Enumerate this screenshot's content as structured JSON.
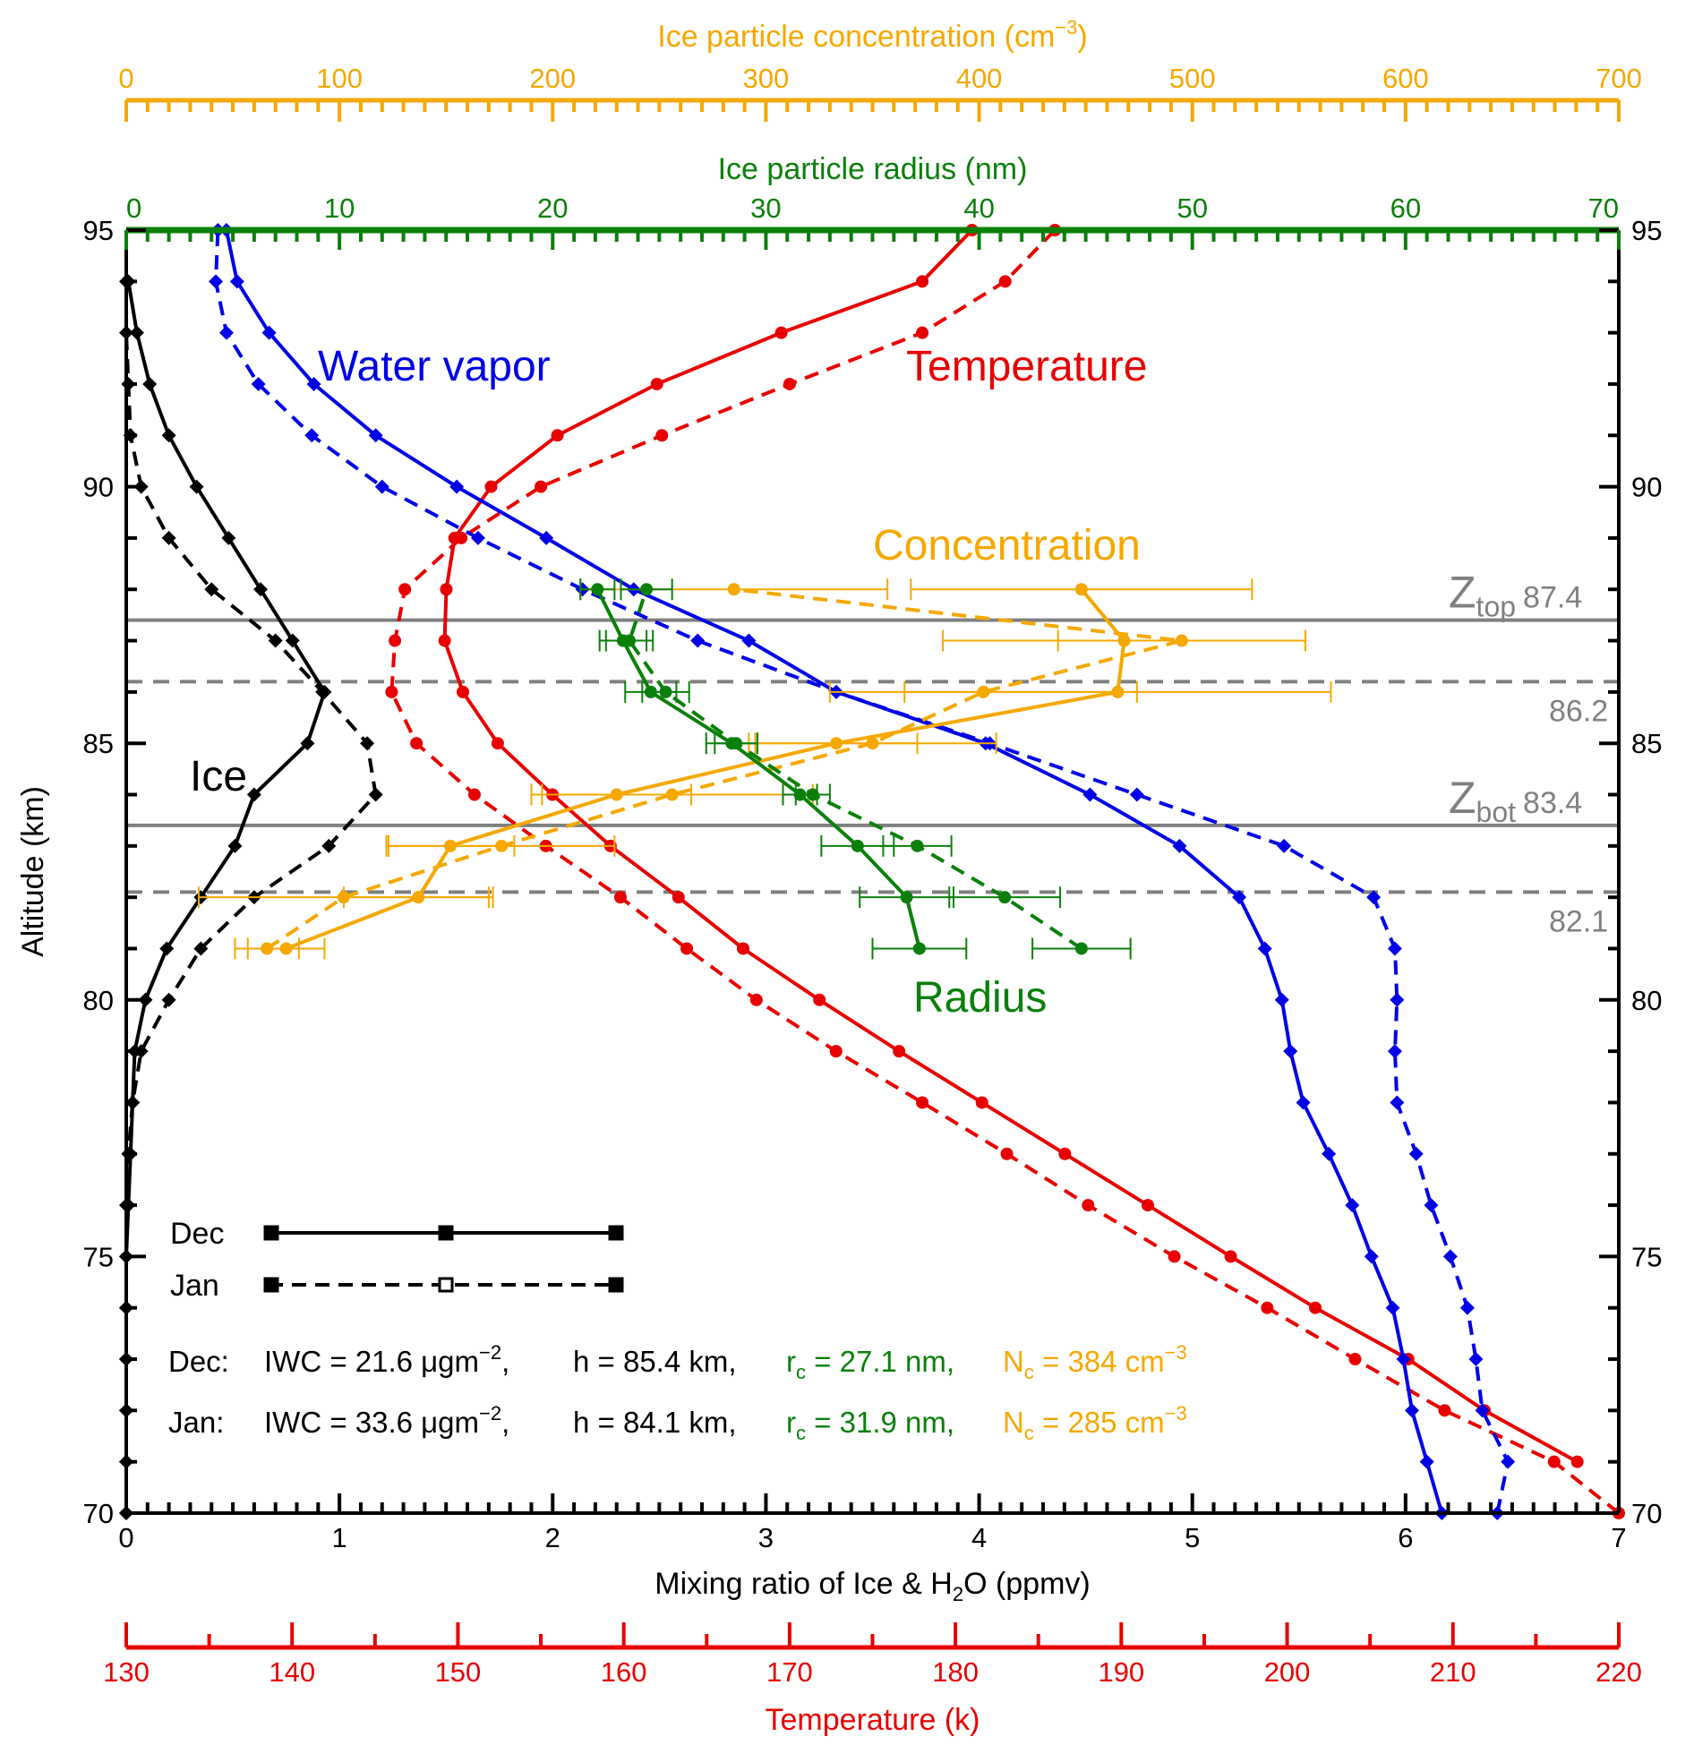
{
  "chart_data": {
    "type": "line",
    "colors": {
      "ice": "#000000",
      "water_vapor": "#0000e6",
      "temperature": "#e80000",
      "concentration": "#f5a800",
      "radius": "#0a800a",
      "zline": "#808080"
    },
    "axes": {
      "left": {
        "title": "Altitude (km)",
        "range": [
          70,
          95
        ],
        "ticks": [
          "70",
          "75",
          "80",
          "85",
          "90",
          "95"
        ],
        "tick_values": [
          70,
          75,
          80,
          85,
          90,
          95
        ]
      },
      "right": {
        "range": [
          70,
          95
        ],
        "ticks": [
          "70",
          "75",
          "80",
          "85",
          "90",
          "95"
        ],
        "tick_values": [
          70,
          75,
          80,
          85,
          90,
          95
        ]
      },
      "bottom": {
        "title_parts": [
          "Mixing ratio of Ice & H",
          "2",
          "O (ppmv)"
        ],
        "range": [
          0,
          7
        ],
        "ticks": [
          "0",
          "1",
          "2",
          "3",
          "4",
          "5",
          "6",
          "7"
        ],
        "tick_values": [
          0,
          1,
          2,
          3,
          4,
          5,
          6,
          7
        ]
      },
      "temperature": {
        "title": "Temperature (k)",
        "range": [
          130,
          220
        ],
        "ticks": [
          "130",
          "140",
          "150",
          "160",
          "170",
          "180",
          "190",
          "200",
          "210",
          "220"
        ],
        "tick_values": [
          130,
          140,
          150,
          160,
          170,
          180,
          190,
          200,
          210,
          220
        ]
      },
      "radius": {
        "title": "Ice particle radius (nm)",
        "range": [
          0,
          70
        ],
        "ticks": [
          "0",
          "10",
          "20",
          "30",
          "40",
          "50",
          "60",
          "70"
        ],
        "tick_values": [
          0,
          10,
          20,
          30,
          40,
          50,
          60,
          70
        ]
      },
      "concentration": {
        "title_parts": [
          "Ice particle concentration (cm",
          "−3",
          ")"
        ],
        "range": [
          0,
          700
        ],
        "ticks": [
          "0",
          "100",
          "200",
          "300",
          "400",
          "500",
          "600",
          "700"
        ],
        "tick_values": [
          0,
          100,
          200,
          300,
          400,
          500,
          600,
          700
        ]
      }
    },
    "labels": {
      "water_vapor": "Water vapor",
      "temperature": "Temperature",
      "concentration": "Concentration",
      "radius": "Radius",
      "ice": "Ice"
    },
    "reference_lines": [
      {
        "name": "Z",
        "sub": "top",
        "value": "87.4",
        "altitude": 87.4,
        "style": "solid"
      },
      {
        "name": "",
        "sub": "",
        "value": "86.2",
        "altitude": 86.2,
        "style": "dashed"
      },
      {
        "name": "Z",
        "sub": "bot",
        "value": "83.4",
        "altitude": 83.4,
        "style": "solid"
      },
      {
        "name": "",
        "sub": "",
        "value": "82.1",
        "altitude": 82.1,
        "style": "dashed"
      }
    ],
    "legend": [
      {
        "name": "Dec",
        "style": "solid"
      },
      {
        "name": "Jan",
        "style": "dashed"
      }
    ],
    "annotations": [
      {
        "month": "Dec:",
        "iwc": "IWC = 21.6 μgm",
        "iwc_sup": "−2",
        "h": "h = 85.4 km,",
        "r": "r",
        "r_sub": "c",
        "r_val": " = 27.1 nm,",
        "n": "N",
        "n_sub": "c",
        "n_val": " = 384 cm",
        "n_sup": "−3"
      },
      {
        "month": "Jan:",
        "iwc": "IWC = 33.6 μgm",
        "iwc_sup": "−2",
        "h": "h = 84.1 km,",
        "r": "r",
        "r_sub": "c",
        "r_val": " = 31.9 nm,",
        "n": "N",
        "n_sub": "c",
        "n_val": " = 285 cm",
        "n_sup": "−3"
      }
    ],
    "series": {
      "ice_dec": {
        "alt": [
          70,
          71,
          72,
          73,
          74,
          75,
          76,
          77,
          78,
          79,
          80,
          81,
          82,
          83,
          84,
          85,
          86,
          87,
          88,
          89,
          90,
          91,
          92,
          93,
          94
        ],
        "x": [
          0,
          0,
          0,
          0,
          0,
          0,
          0.01,
          0.02,
          0.03,
          0.04,
          0.09,
          0.19,
          0.35,
          0.51,
          0.6,
          0.85,
          0.93,
          0.78,
          0.63,
          0.48,
          0.33,
          0.2,
          0.11,
          0.05,
          0.01
        ]
      },
      "ice_jan": {
        "alt": [
          70,
          71,
          72,
          73,
          74,
          75,
          76,
          77,
          78,
          79,
          80,
          81,
          82,
          83,
          84,
          85,
          86,
          87,
          88,
          89,
          90,
          91,
          92,
          93,
          94
        ],
        "x": [
          0,
          0,
          0,
          0,
          0,
          0,
          0,
          0.01,
          0.03,
          0.07,
          0.2,
          0.35,
          0.6,
          0.95,
          1.17,
          1.13,
          0.92,
          0.7,
          0.4,
          0.2,
          0.07,
          0.02,
          0.01,
          0,
          0
        ]
      },
      "wv_dec": {
        "alt": [
          70,
          71,
          72,
          73,
          74,
          75,
          76,
          77,
          78,
          79,
          80,
          81,
          82,
          83,
          84,
          85,
          86,
          87,
          88,
          89,
          90,
          91,
          92,
          93,
          94,
          95
        ],
        "x": [
          6.17,
          6.1,
          6.03,
          5.99,
          5.94,
          5.84,
          5.75,
          5.64,
          5.52,
          5.46,
          5.42,
          5.34,
          5.22,
          4.94,
          4.52,
          4.03,
          3.33,
          2.92,
          2.38,
          1.97,
          1.55,
          1.17,
          0.88,
          0.67,
          0.52,
          0.47
        ]
      },
      "wv_jan": {
        "alt": [
          70,
          71,
          72,
          73,
          74,
          75,
          76,
          77,
          78,
          79,
          80,
          81,
          82,
          83,
          84,
          85,
          86,
          87,
          88,
          89,
          90,
          91,
          92,
          93,
          94,
          95
        ],
        "x": [
          6.43,
          6.48,
          6.36,
          6.33,
          6.29,
          6.21,
          6.12,
          6.05,
          5.96,
          5.95,
          5.96,
          5.95,
          5.85,
          5.43,
          4.74,
          4.05,
          3.33,
          2.68,
          2.14,
          1.65,
          1.2,
          0.87,
          0.62,
          0.47,
          0.42,
          0.43
        ]
      },
      "t_dec": {
        "alt": [
          71,
          72,
          73,
          74,
          75,
          76,
          77,
          78,
          79,
          80,
          81,
          82,
          83,
          84,
          85,
          86,
          87,
          88,
          89,
          90,
          91,
          92,
          93,
          94,
          95
        ],
        "x": [
          217.5,
          211.9,
          207.3,
          201.7,
          196.6,
          191.6,
          186.6,
          181.6,
          176.6,
          171.8,
          167.2,
          163.3,
          159.2,
          155.7,
          152.4,
          150.3,
          149.2,
          149.3,
          149.8,
          152.0,
          156.0,
          162.0,
          169.5,
          178.0,
          181.0
        ]
      },
      "t_jan": {
        "alt": [
          70,
          71,
          72,
          73,
          74,
          75,
          76,
          77,
          78,
          79,
          80,
          81,
          82,
          83,
          84,
          85,
          86,
          87,
          88,
          89,
          90,
          91,
          92,
          93,
          94,
          95
        ],
        "x": [
          220.0,
          216.1,
          209.5,
          204.1,
          198.8,
          193.2,
          188.0,
          183.1,
          178.0,
          172.8,
          168.0,
          163.8,
          159.8,
          155.3,
          151.0,
          147.5,
          146.0,
          146.2,
          146.8,
          150.2,
          155.0,
          162.3,
          170.0,
          178.0,
          183.0,
          186.0
        ]
      },
      "conc_dec": {
        "alt": [
          81,
          82,
          83,
          84,
          85,
          86,
          87,
          88
        ],
        "x": [
          75,
          137,
          152,
          230,
          333,
          465,
          468,
          448
        ],
        "xerr": [
          18,
          35,
          30,
          35,
          38,
          100,
          85,
          80
        ]
      },
      "conc_jan": {
        "alt": [
          81,
          82,
          83,
          84,
          85,
          86,
          87,
          88
        ],
        "x": [
          66,
          102,
          176,
          256,
          350,
          402,
          495,
          285
        ],
        "xerr": [
          15,
          68,
          53,
          66,
          58,
          72,
          58,
          72
        ]
      },
      "rad_dec": {
        "alt": [
          81,
          82,
          83,
          84,
          85,
          86,
          87,
          88
        ],
        "x": [
          37.2,
          36.6,
          34.3,
          31.6,
          28.4,
          24.6,
          23.3,
          22.1
        ],
        "xerr": [
          2.2,
          2.2,
          1.7,
          0.8,
          1.2,
          1.2,
          1.1,
          0.8
        ]
      },
      "rad_jan": {
        "alt": [
          81,
          82,
          83,
          84,
          85,
          86,
          87,
          88
        ],
        "x": [
          44.8,
          41.2,
          37.1,
          32.2,
          28.6,
          25.3,
          23.6,
          24.4
        ],
        "xerr": [
          2.3,
          2.6,
          1.6,
          0.8,
          1.0,
          1.1,
          1.1,
          1.2
        ]
      }
    }
  }
}
